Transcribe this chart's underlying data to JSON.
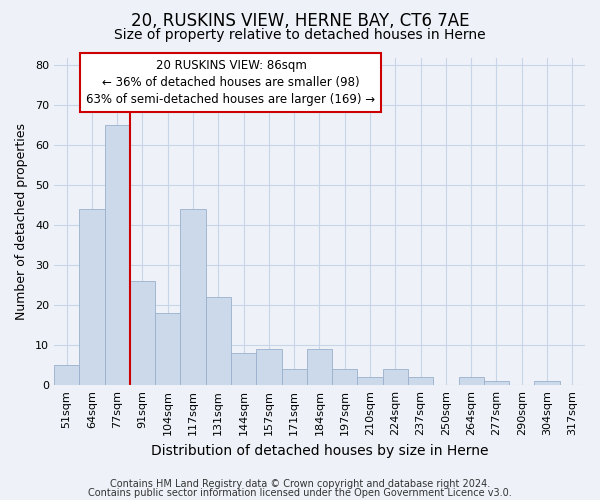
{
  "title1": "20, RUSKINS VIEW, HERNE BAY, CT6 7AE",
  "title2": "Size of property relative to detached houses in Herne",
  "xlabel": "Distribution of detached houses by size in Herne",
  "ylabel": "Number of detached properties",
  "bar_labels": [
    "51sqm",
    "64sqm",
    "77sqm",
    "91sqm",
    "104sqm",
    "117sqm",
    "131sqm",
    "144sqm",
    "157sqm",
    "171sqm",
    "184sqm",
    "197sqm",
    "210sqm",
    "224sqm",
    "237sqm",
    "250sqm",
    "264sqm",
    "277sqm",
    "290sqm",
    "304sqm",
    "317sqm"
  ],
  "bar_values": [
    5,
    44,
    65,
    26,
    18,
    44,
    22,
    8,
    9,
    4,
    9,
    4,
    2,
    4,
    2,
    0,
    2,
    1,
    0,
    1,
    0
  ],
  "bar_color": "#ccd9ea",
  "bar_edge_color": "#9ab0cc",
  "vline_x_index": 3,
  "vline_color": "#cc0000",
  "annotation_title": "20 RUSKINS VIEW: 86sqm",
  "annotation_line1": "← 36% of detached houses are smaller (98)",
  "annotation_line2": "63% of semi-detached houses are larger (169) →",
  "annotation_box_facecolor": "#ffffff",
  "annotation_box_edgecolor": "#cc0000",
  "ylim": [
    0,
    82
  ],
  "yticks": [
    0,
    10,
    20,
    30,
    40,
    50,
    60,
    70,
    80
  ],
  "grid_color": "#c8d4e8",
  "footer1": "Contains HM Land Registry data © Crown copyright and database right 2024.",
  "footer2": "Contains public sector information licensed under the Open Government Licence v3.0.",
  "title1_fontsize": 12,
  "title2_fontsize": 10,
  "xlabel_fontsize": 10,
  "ylabel_fontsize": 9,
  "tick_fontsize": 8,
  "annotation_fontsize": 8.5,
  "footer_fontsize": 7,
  "bg_color": "#eef2f8",
  "plot_bg_color": "#eef2f8"
}
